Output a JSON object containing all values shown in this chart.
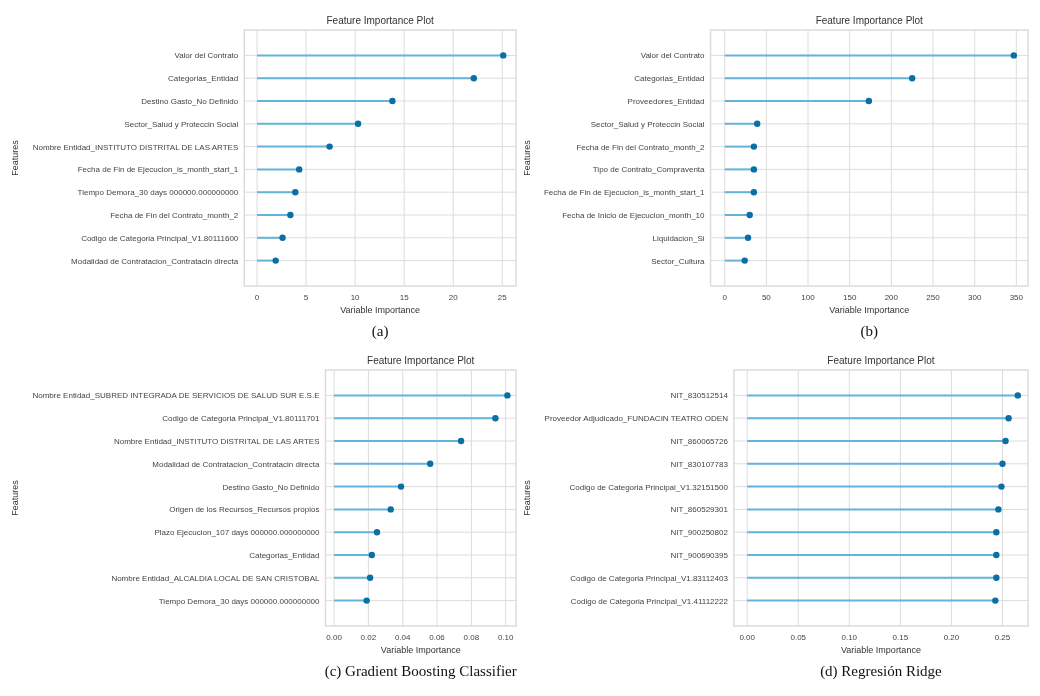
{
  "chart_data": [
    {
      "type": "lollipop",
      "orientation": "horizontal",
      "title": "Feature Importance Plot",
      "xlabel": "Variable Importance",
      "ylabel": "Features",
      "grid": true,
      "marker": "circle",
      "annotations": [
        "(a)"
      ],
      "categories": [
        "Valor del Contrato",
        "Categorias_Entidad",
        "Destino Gasto_No Definido",
        "Sector_Salud y Proteccin Social",
        "Nombre Entidad_INSTITUTO DISTRITAL DE LAS ARTES",
        "Fecha de Fin de Ejecucion_is_month_start_1",
        "Tiempo Demora_30 days 000000.000000000",
        "Fecha de Fin del Contrato_month_2",
        "Codigo de Categoria Principal_V1.80111600",
        "Modalidad de Contratacion_Contratacin directa"
      ],
      "series": [
        {
          "color": "#0b6fa4",
          "values": [
            25.1,
            22.1,
            13.8,
            10.3,
            7.4,
            4.3,
            3.9,
            3.4,
            2.6,
            1.9
          ]
        }
      ],
      "xlim": [
        -1.3,
        26.4
      ],
      "xticks": [
        0,
        5,
        10,
        15,
        20,
        25
      ]
    },
    {
      "type": "lollipop",
      "orientation": "horizontal",
      "title": "Feature Importance Plot",
      "xlabel": "Variable Importance",
      "ylabel": "Features",
      "grid": true,
      "marker": "circle",
      "annotations": [
        "(b)"
      ],
      "categories": [
        "Valor del Contrato",
        "Categorias_Entidad",
        "Proveedores_Entidad",
        "Sector_Salud y Proteccin Social",
        "Fecha de Fin del Contrato_month_2",
        "Tipo de Contrato_Compraventa",
        "Fecha de Fin de Ejecucion_is_month_start_1",
        "Fecha de Inicio de Ejecucion_month_10",
        "Liquidacion_Si",
        "Sector_Cultura"
      ],
      "series": [
        {
          "color": "#0b6fa4",
          "values": [
            347,
            225,
            173,
            39,
            35,
            35,
            35,
            30,
            28,
            24
          ]
        }
      ],
      "xlim": [
        -17,
        364
      ],
      "xticks": [
        0,
        50,
        100,
        150,
        200,
        250,
        300,
        350
      ]
    },
    {
      "type": "lollipop",
      "orientation": "horizontal",
      "title": "Feature Importance Plot",
      "xlabel": "Variable Importance",
      "ylabel": "Features",
      "grid": true,
      "marker": "circle",
      "annotations": [
        "(c) Gradient Boosting Classifier"
      ],
      "categories": [
        "Nombre Entidad_SUBRED INTEGRADA DE SERVICIOS DE SALUD SUR E.S.E",
        "Codigo de Categoria Principal_V1.80111701",
        "Nombre Entidad_INSTITUTO DISTRITAL DE LAS ARTES",
        "Modalidad de Contratacion_Contratacin directa",
        "Destino Gasto_No Definido",
        "Origen de los Recursos_Recursos propios",
        "Plazo Ejecucion_107 days 000000.000000000",
        "Categorias_Entidad",
        "Nombre Entidad_ALCALDIA LOCAL DE SAN CRISTOBAL",
        "Tiempo Demora_30 days 000000.000000000"
      ],
      "series": [
        {
          "color": "#0b6fa4",
          "values": [
            0.101,
            0.094,
            0.074,
            0.056,
            0.039,
            0.033,
            0.025,
            0.022,
            0.021,
            0.019
          ]
        }
      ],
      "xlim": [
        -0.005,
        0.106
      ],
      "xticks": [
        {
          "value": 0,
          "label": "0.00"
        },
        {
          "value": 0.02,
          "label": "0.02"
        },
        {
          "value": 0.04,
          "label": "0.04"
        },
        {
          "value": 0.06,
          "label": "0.06"
        },
        {
          "value": 0.08,
          "label": "0.08"
        },
        {
          "value": 0.1,
          "label": "0.10"
        }
      ]
    },
    {
      "type": "lollipop",
      "orientation": "horizontal",
      "title": "Feature Importance Plot",
      "xlabel": "Variable Importance",
      "ylabel": "Features",
      "grid": true,
      "marker": "circle",
      "annotations": [
        "(d) Regresión Ridge"
      ],
      "categories": [
        "NIT_830512514",
        "Proveedor Adjudicado_FUNDACIN TEATRO ODEN",
        "NIT_860065726",
        "NIT_830107783",
        "Codigo de Categoria Principal_V1.32151500",
        "NIT_860529301",
        "NIT_900250802",
        "NIT_900690395",
        "Codigo de Categoria Principal_V1.83112403",
        "Codigo de Categoria Principal_V1.41112222"
      ],
      "series": [
        {
          "color": "#0b6fa4",
          "values": [
            0.265,
            0.256,
            0.253,
            0.25,
            0.249,
            0.246,
            0.244,
            0.244,
            0.244,
            0.243
          ]
        }
      ],
      "xlim": [
        -0.013,
        0.275
      ],
      "xticks": [
        {
          "value": 0,
          "label": "0.00"
        },
        {
          "value": 0.05,
          "label": "0.05"
        },
        {
          "value": 0.1,
          "label": "0.10"
        },
        {
          "value": 0.15,
          "label": "0.15"
        },
        {
          "value": 0.2,
          "label": "0.20"
        },
        {
          "value": 0.25,
          "label": "0.25"
        }
      ]
    }
  ]
}
